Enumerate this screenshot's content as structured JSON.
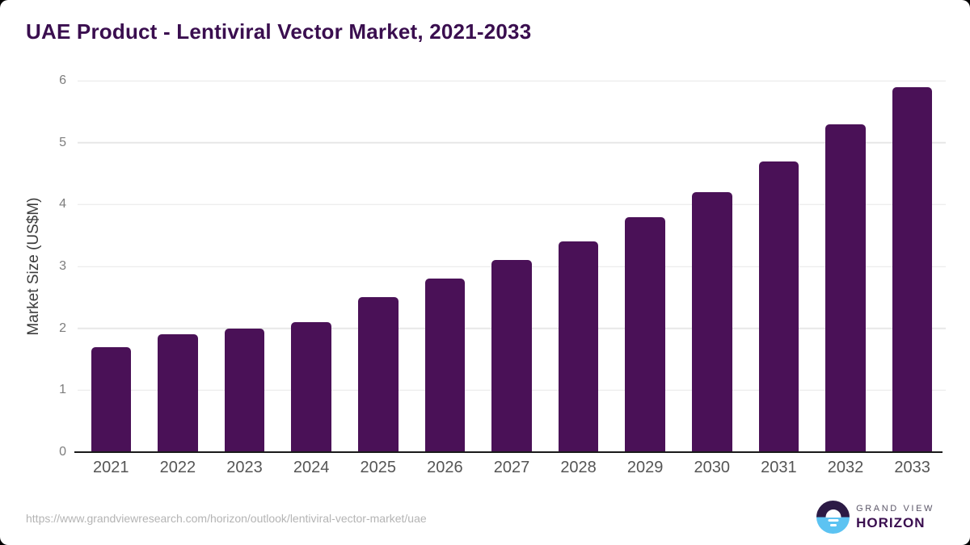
{
  "chart_data": {
    "type": "bar",
    "title": "UAE Product - Lentiviral Vector Market, 2021-2033",
    "categories": [
      "2021",
      "2022",
      "2023",
      "2024",
      "2025",
      "2026",
      "2027",
      "2028",
      "2029",
      "2030",
      "2031",
      "2032",
      "2033"
    ],
    "values": [
      1.7,
      1.9,
      2.0,
      2.1,
      2.5,
      2.8,
      3.1,
      3.4,
      3.8,
      4.2,
      4.7,
      5.3,
      5.9
    ],
    "xlabel": "",
    "ylabel": "Market Size (US$M)",
    "ylim": [
      0,
      6
    ],
    "yticks": [
      0,
      1,
      2,
      3,
      4,
      5,
      6
    ],
    "grid": "horizontal",
    "legend": "none",
    "bar_color": "#4a1157",
    "title_color": "#3a0e4f",
    "gridline_color": "#e7e7e7",
    "axis_line_color": "#1a1a1a"
  },
  "footer": {
    "source_url": "https://www.grandviewresearch.com/horizon/outlook/lentiviral-vector-market/uae",
    "logo": {
      "top_text": "GRAND VIEW",
      "bottom_text": "HORIZON",
      "icon": "horizon-sunset-circle-icon",
      "icon_dark_color": "#2c1a45",
      "icon_blue_color": "#5cc3f2"
    }
  }
}
